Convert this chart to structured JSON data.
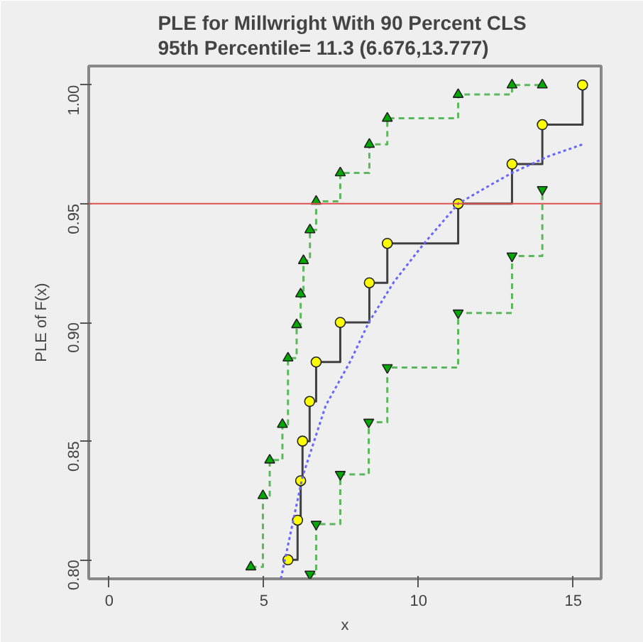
{
  "chart_data": {
    "type": "step",
    "title": "PLE for Millwright With  90 Percent CLS\n95th Percentile=   11.3   (6.676,13.777)",
    "xlabel": "x",
    "ylabel": "PLE of F(x)",
    "xlim": [
      -0.66,
      15.9
    ],
    "ylim": [
      0.792,
      1.008
    ],
    "xticks": [
      0,
      5,
      10,
      15
    ],
    "yticks": [
      {
        "value": 0.8,
        "label": "0.80"
      },
      {
        "value": 0.85,
        "label": "0.85"
      },
      {
        "value": 0.9,
        "label": "0.90"
      },
      {
        "value": 0.95,
        "label": "0.95"
      },
      {
        "value": 1.0,
        "label": "1.00"
      }
    ],
    "grid": false,
    "series": [
      {
        "color": "#404040",
        "marker": "circle",
        "line_style": "solid",
        "x": [
          5.78,
          6.09,
          6.19,
          6.25,
          6.48,
          6.69,
          7.47,
          8.41,
          8.99,
          11.28,
          13.02,
          14.0,
          15.3
        ],
        "values": [
          0.8,
          0.8167,
          0.8333,
          0.85,
          0.8667,
          0.8833,
          0.9,
          0.9167,
          0.9333,
          0.95,
          0.9667,
          0.9833,
          1.0
        ]
      },
      {
        "color": "#5cb85c",
        "marker": "triangle",
        "line_style": "dashed",
        "x": [
          4.58,
          4.97,
          5.19,
          5.6,
          5.78,
          6.06,
          6.19,
          6.28,
          6.49,
          6.69,
          7.47,
          8.41,
          8.99,
          11.28,
          13.02,
          14.0
        ],
        "values": [
          0.797,
          0.827,
          0.842,
          0.857,
          0.885,
          0.899,
          0.912,
          0.926,
          0.939,
          0.951,
          0.963,
          0.975,
          0.986,
          0.996,
          1.0,
          1.0
        ]
      },
      {
        "color": "#5cb85c",
        "marker": "triangle_down",
        "line_style": "dashed",
        "x": [
          6.49,
          6.69,
          7.47,
          8.39,
          8.99,
          11.28,
          13.02,
          14.0
        ],
        "values": [
          0.794,
          0.815,
          0.836,
          0.858,
          0.881,
          0.904,
          0.928,
          0.956
        ]
      },
      {
        "type": "line",
        "color": "#6666ff",
        "marker": "none",
        "line_style": "dotted",
        "x": [
          5.55,
          6.25,
          7.0,
          7.81,
          8.39,
          9.2,
          10.16,
          11.28,
          12.2,
          13.02,
          14.2,
          15.3
        ],
        "values": [
          0.792,
          0.835,
          0.865,
          0.884,
          0.9,
          0.917,
          0.933,
          0.95,
          0.957,
          0.963,
          0.97,
          0.975
        ]
      }
    ],
    "ref_lines": [
      {
        "axis": "y",
        "value": 0.95,
        "color": "#e05050"
      }
    ]
  }
}
